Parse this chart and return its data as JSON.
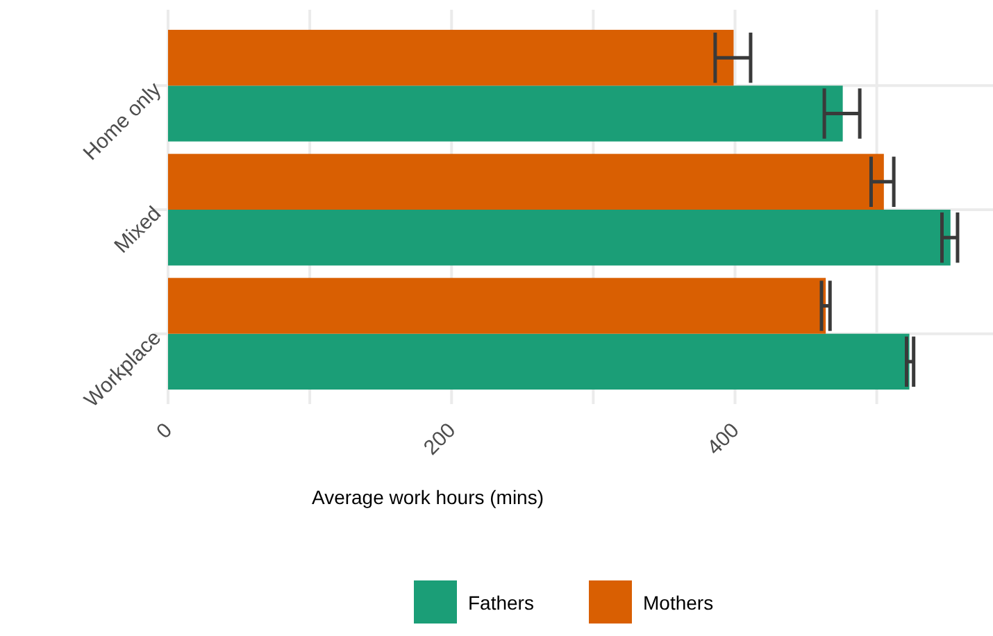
{
  "chart_data": {
    "type": "bar",
    "orientation": "horizontal",
    "xlabel": "Average work hours (mins)",
    "categories": [
      "Home only",
      "Mixed",
      "Workplace"
    ],
    "series": [
      {
        "name": "Fathers",
        "color": "#1b9e77",
        "values": [
          476,
          552,
          523
        ],
        "errors": [
          [
            463,
            488
          ],
          [
            546,
            557
          ],
          [
            521,
            526
          ]
        ]
      },
      {
        "name": "Mothers",
        "color": "#d95f02",
        "values": [
          399,
          505,
          464
        ],
        "errors": [
          [
            386,
            411
          ],
          [
            496,
            512
          ],
          [
            461,
            467
          ]
        ]
      }
    ],
    "xlim": [
      0,
      582
    ],
    "xticks": [
      0,
      {
        "value": 100,
        "label": null
      },
      200,
      {
        "value": 300,
        "label": null
      },
      400,
      {
        "value": 500,
        "label": null
      }
    ],
    "grid": true,
    "legend": "bottom"
  }
}
